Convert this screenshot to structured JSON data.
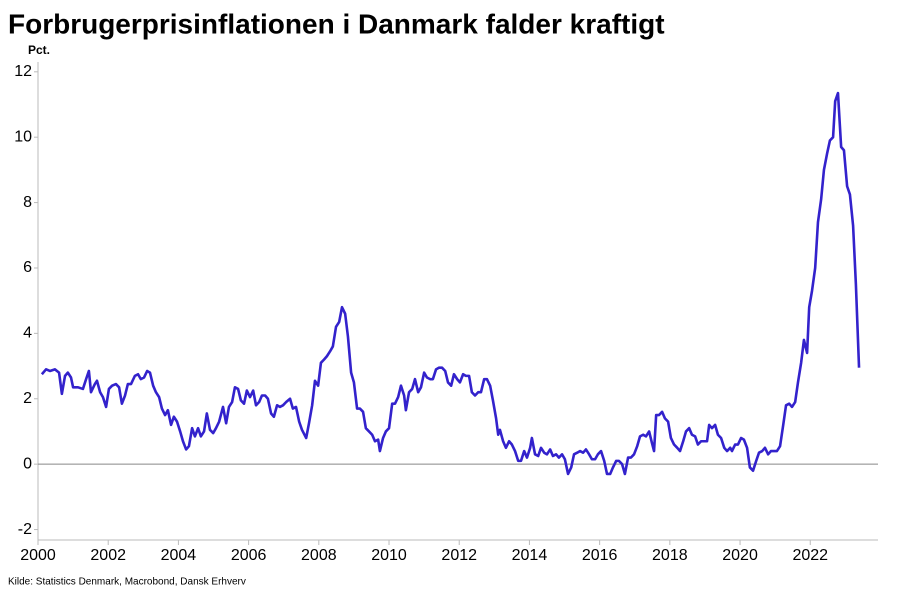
{
  "chart_data": {
    "type": "line",
    "title": "Forbrugerprisinflationen i Danmark falder kraftigt",
    "y_label": "Pct.",
    "source": "Kilde: Statistics Denmark, Macrobond, Dansk Erhverv",
    "xlim": [
      2000,
      2023.93
    ],
    "ylim": [
      -2.32,
      12.3
    ],
    "xticks": [
      2000,
      2002,
      2004,
      2006,
      2008,
      2010,
      2012,
      2014,
      2016,
      2018,
      2020,
      2022
    ],
    "yticks": [
      -2,
      0,
      2,
      4,
      6,
      8,
      10,
      12
    ],
    "zero_line": true,
    "x": [
      2000.11,
      2000.23,
      2000.34,
      2000.48,
      2000.6,
      2000.68,
      2000.77,
      2000.85,
      2000.94,
      2001.0,
      2001.14,
      2001.28,
      2001.37,
      2001.45,
      2001.51,
      2001.62,
      2001.68,
      2001.77,
      2001.85,
      2001.94,
      2002.02,
      2002.11,
      2002.22,
      2002.31,
      2002.39,
      2002.48,
      2002.56,
      2002.65,
      2002.76,
      2002.85,
      2002.93,
      2003.02,
      2003.11,
      2003.19,
      2003.28,
      2003.36,
      2003.45,
      2003.53,
      2003.62,
      2003.7,
      2003.79,
      2003.87,
      2003.96,
      2004.05,
      2004.13,
      2004.22,
      2004.3,
      2004.39,
      2004.47,
      2004.56,
      2004.64,
      2004.73,
      2004.81,
      2004.9,
      2004.99,
      2005.07,
      2005.16,
      2005.27,
      2005.36,
      2005.44,
      2005.53,
      2005.61,
      2005.7,
      2005.78,
      2005.87,
      2005.95,
      2006.04,
      2006.13,
      2006.21,
      2006.3,
      2006.38,
      2006.47,
      2006.55,
      2006.64,
      2006.72,
      2006.81,
      2006.89,
      2006.98,
      2007.07,
      2007.18,
      2007.26,
      2007.35,
      2007.44,
      2007.52,
      2007.64,
      2007.72,
      2007.81,
      2007.89,
      2007.98,
      2008.06,
      2008.15,
      2008.23,
      2008.32,
      2008.4,
      2008.49,
      2008.58,
      2008.66,
      2008.75,
      2008.83,
      2008.92,
      2009.0,
      2009.09,
      2009.17,
      2009.26,
      2009.34,
      2009.43,
      2009.52,
      2009.6,
      2009.69,
      2009.74,
      2009.83,
      2009.91,
      2010.0,
      2010.09,
      2010.17,
      2010.26,
      2010.34,
      2010.43,
      2010.48,
      2010.57,
      2010.66,
      2010.74,
      2010.83,
      2010.91,
      2011.0,
      2011.08,
      2011.17,
      2011.25,
      2011.34,
      2011.42,
      2011.51,
      2011.6,
      2011.68,
      2011.77,
      2011.85,
      2011.94,
      2012.02,
      2012.11,
      2012.19,
      2012.28,
      2012.36,
      2012.45,
      2012.54,
      2012.62,
      2012.71,
      2012.79,
      2012.88,
      2012.96,
      2013.05,
      2013.11,
      2013.16,
      2013.25,
      2013.33,
      2013.42,
      2013.5,
      2013.59,
      2013.68,
      2013.76,
      2013.85,
      2013.93,
      2014.02,
      2014.07,
      2014.16,
      2014.25,
      2014.33,
      2014.42,
      2014.5,
      2014.59,
      2014.67,
      2014.76,
      2014.84,
      2014.93,
      2015.01,
      2015.1,
      2015.19,
      2015.27,
      2015.36,
      2015.44,
      2015.53,
      2015.61,
      2015.7,
      2015.78,
      2015.87,
      2015.95,
      2016.04,
      2016.13,
      2016.21,
      2016.3,
      2016.38,
      2016.47,
      2016.55,
      2016.64,
      2016.72,
      2016.81,
      2016.89,
      2016.98,
      2017.07,
      2017.15,
      2017.24,
      2017.32,
      2017.41,
      2017.49,
      2017.55,
      2017.61,
      2017.69,
      2017.78,
      2017.86,
      2017.95,
      2018.03,
      2018.12,
      2018.21,
      2018.29,
      2018.38,
      2018.46,
      2018.55,
      2018.63,
      2018.72,
      2018.8,
      2018.89,
      2018.97,
      2019.06,
      2019.12,
      2019.2,
      2019.29,
      2019.37,
      2019.46,
      2019.55,
      2019.63,
      2019.72,
      2019.77,
      2019.86,
      2019.94,
      2020.03,
      2020.11,
      2020.2,
      2020.28,
      2020.37,
      2020.46,
      2020.54,
      2020.63,
      2020.71,
      2020.8,
      2020.88,
      2020.97,
      2021.05,
      2021.14,
      2021.23,
      2021.31,
      2021.4,
      2021.48,
      2021.57,
      2021.65,
      2021.74,
      2021.82,
      2021.91,
      2021.97,
      2022.05,
      2022.14,
      2022.22,
      2022.31,
      2022.39,
      2022.48,
      2022.56,
      2022.65,
      2022.71,
      2022.79,
      2022.88,
      2022.96,
      2023.05,
      2023.13,
      2023.22,
      2023.3,
      2023.39
    ],
    "series": [
      {
        "name": "Inflation",
        "color": "#3322cc",
        "values": [
          2.75,
          2.9,
          2.85,
          2.9,
          2.8,
          2.15,
          2.7,
          2.8,
          2.65,
          2.35,
          2.35,
          2.3,
          2.6,
          2.85,
          2.2,
          2.45,
          2.55,
          2.2,
          2.05,
          1.75,
          2.3,
          2.4,
          2.45,
          2.35,
          1.85,
          2.1,
          2.45,
          2.45,
          2.7,
          2.75,
          2.6,
          2.65,
          2.85,
          2.8,
          2.4,
          2.2,
          2.05,
          1.7,
          1.5,
          1.65,
          1.2,
          1.45,
          1.3,
          1.0,
          0.7,
          0.45,
          0.55,
          1.1,
          0.85,
          1.1,
          0.85,
          1.0,
          1.55,
          1.05,
          0.95,
          1.1,
          1.3,
          1.75,
          1.25,
          1.75,
          1.9,
          2.35,
          2.3,
          1.95,
          1.85,
          2.25,
          2.05,
          2.25,
          1.8,
          1.9,
          2.1,
          2.1,
          2.0,
          1.55,
          1.45,
          1.8,
          1.75,
          1.8,
          1.9,
          2.0,
          1.7,
          1.75,
          1.3,
          1.05,
          0.8,
          1.25,
          1.8,
          2.55,
          2.4,
          3.1,
          3.2,
          3.3,
          3.45,
          3.6,
          4.2,
          4.35,
          4.8,
          4.6,
          3.9,
          2.8,
          2.5,
          1.7,
          1.7,
          1.6,
          1.1,
          1.0,
          0.9,
          0.7,
          0.75,
          0.4,
          0.8,
          1.0,
          1.1,
          1.85,
          1.85,
          2.05,
          2.4,
          2.1,
          1.65,
          2.2,
          2.3,
          2.6,
          2.2,
          2.35,
          2.8,
          2.65,
          2.6,
          2.6,
          2.9,
          2.95,
          2.95,
          2.85,
          2.5,
          2.4,
          2.75,
          2.6,
          2.5,
          2.75,
          2.7,
          2.7,
          2.2,
          2.1,
          2.2,
          2.2,
          2.6,
          2.6,
          2.4,
          1.95,
          1.4,
          0.9,
          1.05,
          0.7,
          0.5,
          0.7,
          0.6,
          0.4,
          0.1,
          0.1,
          0.4,
          0.2,
          0.5,
          0.8,
          0.3,
          0.25,
          0.5,
          0.35,
          0.3,
          0.45,
          0.25,
          0.3,
          0.2,
          0.3,
          0.15,
          -0.3,
          -0.1,
          0.3,
          0.35,
          0.4,
          0.35,
          0.45,
          0.3,
          0.15,
          0.15,
          0.3,
          0.4,
          0.1,
          -0.3,
          -0.3,
          -0.1,
          0.1,
          0.1,
          0.0,
          -0.3,
          0.2,
          0.2,
          0.3,
          0.55,
          0.85,
          0.9,
          0.85,
          1.0,
          0.65,
          0.4,
          1.5,
          1.5,
          1.6,
          1.4,
          1.3,
          0.8,
          0.6,
          0.5,
          0.4,
          0.7,
          1.0,
          1.1,
          0.9,
          0.85,
          0.6,
          0.7,
          0.7,
          0.7,
          1.2,
          1.1,
          1.2,
          0.9,
          0.8,
          0.5,
          0.4,
          0.5,
          0.4,
          0.6,
          0.6,
          0.8,
          0.75,
          0.5,
          -0.1,
          -0.2,
          0.1,
          0.35,
          0.4,
          0.5,
          0.3,
          0.4,
          0.4,
          0.4,
          0.55,
          1.2,
          1.8,
          1.85,
          1.75,
          1.9,
          2.5,
          3.1,
          3.8,
          3.4,
          4.8,
          5.3,
          6.0,
          7.4,
          8.1,
          9.0,
          9.5,
          9.9,
          10.0,
          11.1,
          11.35,
          9.7,
          9.6,
          8.5,
          8.25,
          7.3,
          5.5,
          2.95
        ]
      }
    ]
  }
}
